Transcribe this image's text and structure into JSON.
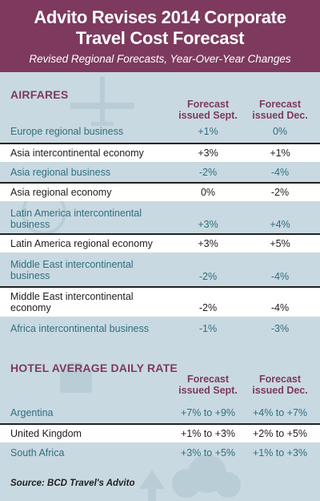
{
  "header": {
    "title_line1": "Advito Revises 2014 Corporate",
    "title_line2": "Travel Cost Forecast",
    "subtitle": "Revised Regional Forecasts, Year-Over-Year Changes"
  },
  "airfares": {
    "title": "AIRFARES",
    "col1_line1": "Forecast",
    "col1_line2": "issued Sept.",
    "col2_line1": "Forecast",
    "col2_line2": "issued Dec.",
    "rows": [
      {
        "line1": "Europe regional business",
        "line2": "",
        "sept": "+1%",
        "dec": "0%"
      },
      {
        "line1": "Asia intercontinental economy",
        "line2": "",
        "sept": "+3%",
        "dec": "+1%"
      },
      {
        "line1": "Asia regional business",
        "line2": "",
        "sept": "-2%",
        "dec": "-4%"
      },
      {
        "line1": "Asia regional economy",
        "line2": "",
        "sept": "0%",
        "dec": "-2%"
      },
      {
        "line1": "Latin America intercontinental",
        "line2": "business",
        "sept": "+3%",
        "dec": "+4%"
      },
      {
        "line1": "Latin America regional economy",
        "line2": "",
        "sept": "+3%",
        "dec": "+5%"
      },
      {
        "line1": "Middle East intercontinental",
        "line2": "business",
        "sept": "-2%",
        "dec": "-4%"
      },
      {
        "line1": "Middle East intercontinental",
        "line2": "economy",
        "sept": "-2%",
        "dec": "-4%"
      },
      {
        "line1": "Africa intercontinental business",
        "line2": "",
        "sept": "-1%",
        "dec": "-3%"
      }
    ]
  },
  "hotel": {
    "title": "HOTEL AVERAGE DAILY RATE",
    "col1_line1": "Forecast",
    "col1_line2": "issued Sept.",
    "col2_line1": "Forecast",
    "col2_line2": "issued Dec.",
    "rows": [
      {
        "line1": "Argentina",
        "sept": "+7% to +9%",
        "dec": "+4% to +7%"
      },
      {
        "line1": "United Kingdom",
        "sept": "+1% to +3%",
        "dec": "+2% to +5%"
      },
      {
        "line1": "South Africa",
        "sept": "+3% to +5%",
        "dec": "+1% to +3%"
      }
    ]
  },
  "source": "Source: BCD Travel's Advito",
  "colors": {
    "header_bg": "#7d3a5e",
    "page_bg": "#c9d9e1",
    "accent_text": "#2f6f80"
  }
}
